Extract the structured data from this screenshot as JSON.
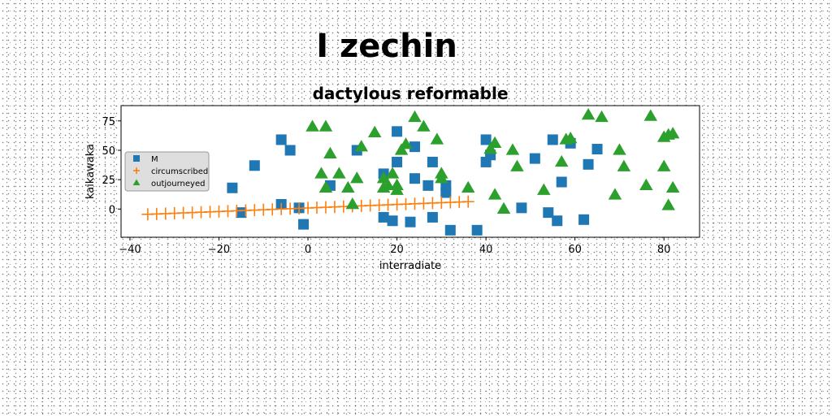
{
  "suptitle": "I zechin",
  "chart_data": {
    "type": "scatter",
    "title": "dactylous reformable",
    "xlabel": "interradiate",
    "ylabel": "kaikawaka",
    "xlim": [
      -42,
      88
    ],
    "ylim": [
      -24,
      88
    ],
    "xticks": [
      -40,
      -20,
      0,
      20,
      40,
      60,
      80
    ],
    "yticks": [
      0,
      25,
      50,
      75
    ],
    "grid": false,
    "legend_position": "center-left",
    "series": [
      {
        "name": "M",
        "marker": "square",
        "color": "#1f77b4",
        "points": [
          [
            -17,
            18
          ],
          [
            -15,
            -3
          ],
          [
            -12,
            37
          ],
          [
            -6,
            59
          ],
          [
            -6,
            4
          ],
          [
            -4,
            50
          ],
          [
            -2,
            1
          ],
          [
            -1,
            -13
          ],
          [
            5,
            20
          ],
          [
            11,
            50
          ],
          [
            17,
            -7
          ],
          [
            17,
            30
          ],
          [
            19,
            -10
          ],
          [
            20,
            40
          ],
          [
            20,
            66
          ],
          [
            23,
            -11
          ],
          [
            24,
            26
          ],
          [
            24,
            53
          ],
          [
            27,
            20
          ],
          [
            28,
            40
          ],
          [
            28,
            -7
          ],
          [
            31,
            14
          ],
          [
            31,
            20
          ],
          [
            32,
            -18
          ],
          [
            38,
            -18
          ],
          [
            40,
            40
          ],
          [
            40,
            59
          ],
          [
            41,
            46
          ],
          [
            48,
            1
          ],
          [
            51,
            43
          ],
          [
            54,
            -3
          ],
          [
            55,
            59
          ],
          [
            56,
            -10
          ],
          [
            57,
            23
          ],
          [
            59,
            56
          ],
          [
            62,
            -9
          ],
          [
            63,
            38
          ],
          [
            65,
            51
          ]
        ]
      },
      {
        "name": "circumscribed",
        "marker": "plus",
        "color": "#ff7f0e",
        "points": [
          [
            -36,
            -4.5
          ],
          [
            -34,
            -4.2
          ],
          [
            -32,
            -3.9
          ],
          [
            -30,
            -3.6
          ],
          [
            -28,
            -3.3
          ],
          [
            -26,
            -3.0
          ],
          [
            -24,
            -2.7
          ],
          [
            -22,
            -2.4
          ],
          [
            -20,
            -2.1
          ],
          [
            -18,
            -1.8
          ],
          [
            -16,
            -1.5
          ],
          [
            -14,
            -1.2
          ],
          [
            -12,
            -0.9
          ],
          [
            -10,
            -0.6
          ],
          [
            -8,
            -0.3
          ],
          [
            -6,
            0.0
          ],
          [
            -4,
            0.3
          ],
          [
            -2,
            0.6
          ],
          [
            0,
            0.9
          ],
          [
            2,
            1.2
          ],
          [
            4,
            1.5
          ],
          [
            6,
            1.8
          ],
          [
            8,
            2.1
          ],
          [
            10,
            2.4
          ],
          [
            12,
            2.7
          ],
          [
            14,
            3.0
          ],
          [
            16,
            3.3
          ],
          [
            18,
            3.6
          ],
          [
            20,
            3.9
          ],
          [
            22,
            4.2
          ],
          [
            24,
            4.5
          ],
          [
            26,
            4.8
          ],
          [
            28,
            5.1
          ],
          [
            30,
            5.4
          ],
          [
            32,
            5.7
          ],
          [
            34,
            6.0
          ],
          [
            36,
            6.3
          ]
        ]
      },
      {
        "name": "outjourneyed",
        "marker": "triangle",
        "color": "#2ca02c",
        "points": [
          [
            1,
            70
          ],
          [
            3,
            30
          ],
          [
            4,
            70
          ],
          [
            4,
            18
          ],
          [
            5,
            47
          ],
          [
            7,
            30
          ],
          [
            9,
            18
          ],
          [
            10,
            4
          ],
          [
            11,
            26
          ],
          [
            12,
            53
          ],
          [
            15,
            65
          ],
          [
            17,
            18
          ],
          [
            17,
            26
          ],
          [
            18,
            20
          ],
          [
            19,
            30
          ],
          [
            20,
            16
          ],
          [
            20,
            20
          ],
          [
            21,
            50
          ],
          [
            22,
            55
          ],
          [
            24,
            78
          ],
          [
            26,
            70
          ],
          [
            29,
            59
          ],
          [
            30,
            26
          ],
          [
            30,
            30
          ],
          [
            36,
            18
          ],
          [
            41,
            51
          ],
          [
            42,
            56
          ],
          [
            42,
            12
          ],
          [
            44,
            0
          ],
          [
            46,
            50
          ],
          [
            47,
            36
          ],
          [
            53,
            16
          ],
          [
            57,
            40
          ],
          [
            58,
            59
          ],
          [
            59,
            60
          ],
          [
            63,
            80
          ],
          [
            66,
            78
          ],
          [
            69,
            12
          ],
          [
            70,
            50
          ],
          [
            71,
            36
          ],
          [
            76,
            20
          ],
          [
            77,
            79
          ],
          [
            80,
            36
          ],
          [
            80,
            61
          ],
          [
            81,
            3
          ],
          [
            81,
            63
          ],
          [
            82,
            18
          ],
          [
            82,
            64
          ]
        ]
      }
    ]
  }
}
